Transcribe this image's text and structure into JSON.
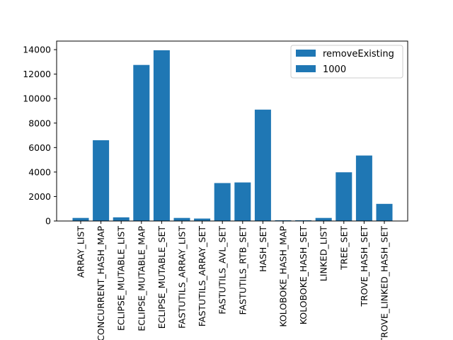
{
  "chart_data": {
    "type": "bar",
    "categories": [
      "ARRAY_LIST",
      "CONCURRENT_HASH_MAP",
      "ECLIPSE_MUTABLE_LIST",
      "ECLIPSE_MUTABLE_MAP",
      "ECLIPSE_MUTABLE_SET",
      "FASTUTILS_ARRAY_LIST",
      "FASTUTILS_ARRAY_SET",
      "FASTUTILS_AVL_SET",
      "FASTUTILS_RTB_SET",
      "HASH_SET",
      "KOLOBOKE_HASH_MAP",
      "KOLOBOKE_HASH_SET",
      "LINKED_LIST",
      "TREE_SET",
      "TROVE_HASH_SET",
      "TROVE_LINKED_HASH_SET"
    ],
    "values": [
      250,
      6600,
      300,
      12750,
      13950,
      250,
      200,
      3100,
      3150,
      9100,
      60,
      60,
      250,
      3980,
      5350,
      1400
    ],
    "series": [
      {
        "name": "removeExisting",
        "values": [
          250,
          6600,
          300,
          12750,
          13950,
          250,
          200,
          3100,
          3150,
          9100,
          60,
          60,
          250,
          3980,
          5350,
          1400
        ]
      }
    ],
    "legend": [
      "removeExisting",
      "1000"
    ],
    "legend_position": "top-right",
    "title": "",
    "xlabel": "",
    "ylabel": "",
    "ylim": [
      0,
      14700
    ],
    "yticks": [
      0,
      2000,
      4000,
      6000,
      8000,
      10000,
      12000,
      14000
    ],
    "grid": false,
    "bar_color": "#1f77b4"
  }
}
